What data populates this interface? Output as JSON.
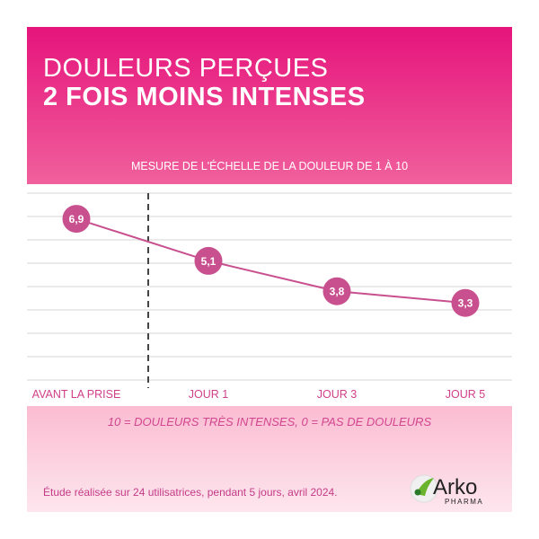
{
  "header": {
    "title_line1": "DOULEURS PERÇUES",
    "title_line2": "2 FOIS MOINS INTENSES",
    "subtitle": "MESURE DE L'ÉCHELLE DE LA DOULEUR DE 1 À 10"
  },
  "chart_data": {
    "type": "line",
    "title": "DOULEURS PERÇUES 2 FOIS MOINS INTENSES",
    "subtitle": "MESURE DE L'ÉCHELLE DE LA DOULEUR DE 1 À 10",
    "categories": [
      "AVANT LA PRISE",
      "JOUR 1",
      "JOUR 3",
      "JOUR 5"
    ],
    "values": [
      6.9,
      5.1,
      3.8,
      3.3
    ],
    "data_labels": [
      "6,9",
      "5,1",
      "3,8",
      "3,3"
    ],
    "ylim": [
      0,
      8
    ],
    "grid": true,
    "divider_after_category": "AVANT LA PRISE",
    "colors": {
      "line": "#c9508e",
      "marker": "#c9508e",
      "axis_labels": "#d0408a",
      "header": "#e6147c"
    }
  },
  "footer": {
    "legend": "10 = DOULEURS TRÈS INTENSES, 0 = PAS DE DOULEURS",
    "source": "Étude réalisée sur 24 utilisatrices, pendant 5 jours, avril 2024."
  },
  "logo": {
    "brand": "Arko",
    "sub": "PHARMA"
  }
}
